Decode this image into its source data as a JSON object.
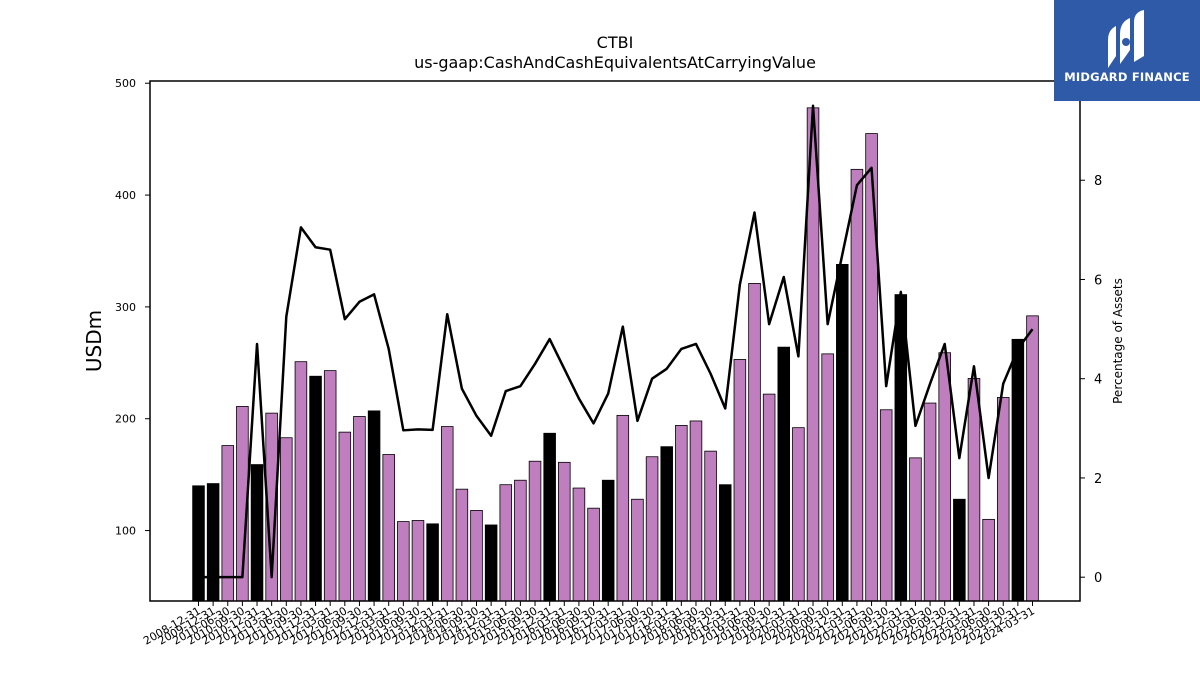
{
  "chart_data": {
    "type": "bar",
    "title": "CTBI",
    "subtitle": "us-gaap:CashAndCashEquivalentsAtCarryingValue",
    "ylabel": "USDm",
    "y2label": "Percentage of Assets",
    "ylim": [
      37,
      502
    ],
    "y2lim": [
      -0.48,
      10.0
    ],
    "yticks": [
      100,
      200,
      300,
      400,
      500
    ],
    "y2ticks": [
      0,
      2,
      4,
      6,
      8
    ],
    "colors": {
      "q4": "#000000",
      "other": "#bf7fbf",
      "line": "#000000"
    },
    "categories": [
      "2008-12-31",
      "2009-12-31",
      "2010-06-30",
      "2010-09-30",
      "2010-12-31",
      "2011-03-31",
      "2011-06-30",
      "2011-09-30",
      "2011-12-31",
      "2012-03-31",
      "2012-06-30",
      "2012-09-30",
      "2012-12-31",
      "2013-03-31",
      "2013-06-30",
      "2013-09-30",
      "2013-12-31",
      "2014-03-31",
      "2014-06-30",
      "2014-09-30",
      "2014-12-31",
      "2015-03-31",
      "2015-06-30",
      "2015-09-30",
      "2015-12-31",
      "2016-03-31",
      "2016-06-30",
      "2016-09-30",
      "2016-12-31",
      "2017-03-31",
      "2017-06-30",
      "2017-09-30",
      "2017-12-31",
      "2018-03-31",
      "2018-06-30",
      "2018-09-30",
      "2018-12-31",
      "2019-03-31",
      "2019-06-30",
      "2019-09-30",
      "2019-12-31",
      "2020-03-31",
      "2020-06-30",
      "2020-09-30",
      "2020-12-31",
      "2021-03-31",
      "2021-06-30",
      "2021-09-30",
      "2021-12-31",
      "2022-03-31",
      "2022-06-30",
      "2022-09-30",
      "2022-12-31",
      "2023-03-31",
      "2023-06-30",
      "2023-09-30",
      "2023-12-31",
      "2024-03-31"
    ],
    "x_tick_labels": [
      "2008-12-31",
      "2009-12-31",
      "2010-06-30",
      "2010-09-30",
      "2010-12-31",
      "2011-03-31",
      "2011-06-30",
      "2011-09-30",
      "2011-12-31",
      "2012-03-31",
      "2012-06-30",
      "2012-09-30",
      "2012-12-31",
      "2013-03-31",
      "2013-06-30",
      "2013-09-30",
      "2013-12-31",
      "2014-03-31",
      "2014-06-30",
      "2014-09-30",
      "2014-12-31",
      "2015-03-31",
      "2015-06-30",
      "2015-09-30",
      "2015-12-31",
      "2016-03-31",
      "2016-06-30",
      "2016-09-30",
      "2016-12-31",
      "2017-03-31",
      "2017-06-30",
      "2017-09-30",
      "2017-12-31",
      "2018-03-31",
      "2018-06-30",
      "2018-09-30",
      "2018-12-31",
      "2019-03-31",
      "2019-06-30",
      "2019-09-30",
      "2019-12-31",
      "2020-03-31",
      "2020-06-30",
      "2020-09-30",
      "2020-12-31",
      "2021-03-31",
      "2021-06-30",
      "2021-09-30",
      "2021-12-31",
      "2022-03-31",
      "2022-06-30",
      "2022-09-30",
      "2022-12-31",
      "2023-03-31",
      "2023-06-30",
      "2023-09-30",
      "2023-12-31",
      "2024-03-31"
    ],
    "series": [
      {
        "values": [
          140,
          142,
          176,
          211,
          159,
          205,
          183,
          251,
          238,
          243,
          188,
          202,
          207,
          168,
          108,
          109,
          106,
          193,
          137,
          118,
          105,
          141,
          145,
          162,
          187,
          161,
          138,
          120,
          145,
          203,
          128,
          166,
          175,
          194,
          198,
          171,
          141,
          253,
          321,
          222,
          264,
          192,
          478,
          258,
          338,
          423,
          455,
          208,
          311,
          165,
          214,
          259,
          128,
          236,
          110,
          219,
          271,
          292
        ]
      },
      {
        "values": [
          0.0,
          0.0,
          0.0,
          0.0,
          4.7,
          0.0,
          5.25,
          7.05,
          6.65,
          6.6,
          5.2,
          5.55,
          5.7,
          4.6,
          2.96,
          2.98,
          2.97,
          5.3,
          3.8,
          3.25,
          2.85,
          3.75,
          3.85,
          4.3,
          4.8,
          4.2,
          3.6,
          3.1,
          3.7,
          5.05,
          3.15,
          4.0,
          4.2,
          4.6,
          4.7,
          4.1,
          3.4,
          5.9,
          7.35,
          5.1,
          6.05,
          4.45,
          9.5,
          5.1,
          6.5,
          7.9,
          8.25,
          3.85,
          5.75,
          3.05,
          3.9,
          4.7,
          2.4,
          4.25,
          2.0,
          3.9,
          4.6,
          5.0
        ]
      }
    ]
  },
  "logo": {
    "text": "MIDGARD FINANCE"
  }
}
